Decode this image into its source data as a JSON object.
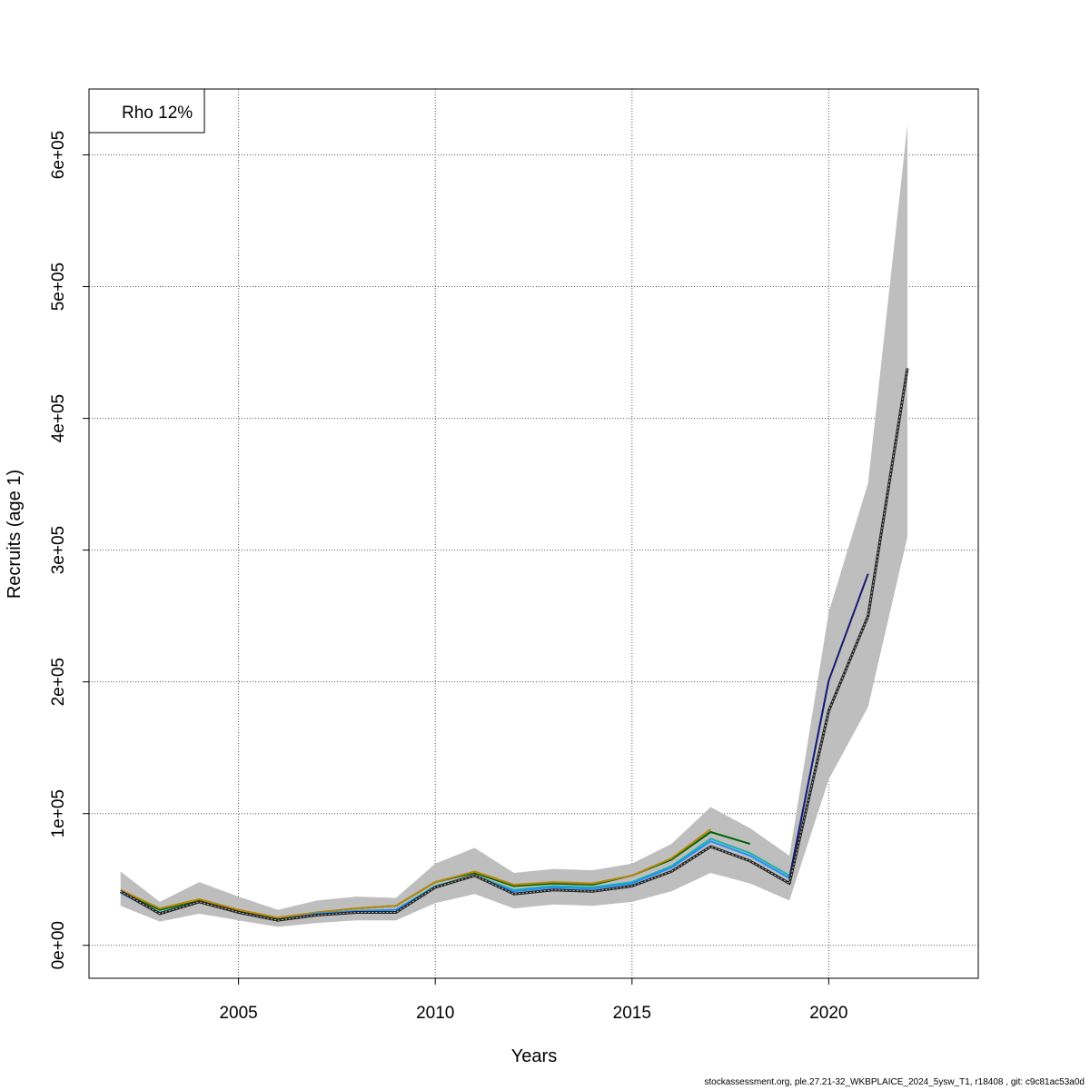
{
  "footer": "stockassessment.org, ple.27.21-32_WKBPLAICE_2024_5ysw_T1, r18408 , git: c9c81ac53a0d",
  "chart_data": {
    "type": "line",
    "title": "",
    "xlabel": "Years",
    "ylabel": "Recruits (age 1)",
    "legend": {
      "text": "Rho 12%",
      "placement": "top-left"
    },
    "xlim": [
      2001.2,
      2023.8
    ],
    "ylim": [
      -25000,
      650000
    ],
    "xticks": [
      2005,
      2010,
      2015,
      2020
    ],
    "yticks": [
      0,
      100000,
      200000,
      300000,
      400000,
      500000,
      600000
    ],
    "ytick_labels": [
      "0e+00",
      "1e+05",
      "2e+05",
      "3e+05",
      "4e+05",
      "5e+05",
      "6e+05"
    ],
    "grid": true,
    "confidence_band": {
      "color": "#bebebe",
      "x": [
        2002,
        2003,
        2004,
        2005,
        2006,
        2007,
        2008,
        2009,
        2010,
        2011,
        2012,
        2013,
        2014,
        2015,
        2016,
        2017,
        2018,
        2019,
        2020,
        2021,
        2022
      ],
      "lower": [
        30000,
        18000,
        24000,
        19000,
        14000,
        17000,
        19000,
        19000,
        32000,
        39000,
        28000,
        31000,
        30000,
        33000,
        41000,
        55000,
        47000,
        34000,
        126000,
        181000,
        310000
      ],
      "upper": [
        56000,
        33000,
        48000,
        37000,
        27000,
        34000,
        37000,
        36000,
        62000,
        74000,
        55000,
        58000,
        57000,
        62000,
        77000,
        105000,
        89000,
        68000,
        253000,
        351000,
        623000
      ]
    },
    "series": [
      {
        "color": "#006400",
        "x": [
          2002,
          2003,
          2004,
          2005,
          2006,
          2007,
          2008,
          2009,
          2010,
          2011,
          2012,
          2013,
          2014,
          2015,
          2016,
          2017,
          2018
        ],
        "values": [
          41000,
          27000,
          34000,
          26000,
          20000,
          25000,
          28000,
          30000,
          48000,
          55000,
          45000,
          47000,
          46000,
          53000,
          65000,
          86000,
          77000
        ]
      },
      {
        "color": "#b8860b",
        "x": [
          2002,
          2003,
          2004,
          2005,
          2006,
          2007,
          2008,
          2009,
          2010,
          2011,
          2012,
          2013,
          2014,
          2015,
          2016,
          2017
        ],
        "values": [
          42000,
          28000,
          35000,
          27000,
          21000,
          25000,
          28000,
          30000,
          48000,
          56000,
          46000,
          48000,
          47000,
          53000,
          66000,
          88000
        ]
      },
      {
        "color": "#20b2aa",
        "x": [
          2002,
          2003,
          2004,
          2005,
          2006,
          2007,
          2008,
          2009,
          2010,
          2011,
          2012,
          2013,
          2014,
          2015,
          2016,
          2017,
          2018,
          2019
        ],
        "values": [
          40000,
          25000,
          33000,
          25000,
          19000,
          24000,
          26000,
          27000,
          45000,
          53000,
          42000,
          45000,
          44000,
          48000,
          60000,
          81000,
          70000,
          53000
        ]
      },
      {
        "color": "#1e90ff",
        "x": [
          2002,
          2003,
          2004,
          2005,
          2006,
          2007,
          2008,
          2009,
          2010,
          2011,
          2012,
          2013,
          2014,
          2015,
          2016,
          2017,
          2018,
          2019,
          2020
        ],
        "values": [
          40000,
          24000,
          33000,
          25000,
          19000,
          24000,
          26000,
          27000,
          44000,
          53000,
          41000,
          44000,
          43000,
          47000,
          59000,
          79000,
          68000,
          51000,
          201000
        ]
      },
      {
        "color": "#191970",
        "x": [
          2019,
          2020,
          2021
        ],
        "values": [
          51000,
          201000,
          282000
        ]
      },
      {
        "color": "#222222",
        "dashed": true,
        "x": [
          2002,
          2003,
          2004,
          2005,
          2006,
          2007,
          2008,
          2009,
          2010,
          2011,
          2012,
          2013,
          2014,
          2015,
          2016,
          2017,
          2018,
          2019,
          2020,
          2021,
          2022
        ],
        "values": [
          41000,
          24000,
          33000,
          25000,
          19000,
          23000,
          25000,
          25000,
          44000,
          53000,
          39000,
          42000,
          41000,
          45000,
          56000,
          75000,
          64000,
          47000,
          178000,
          250000,
          438000
        ]
      }
    ]
  }
}
